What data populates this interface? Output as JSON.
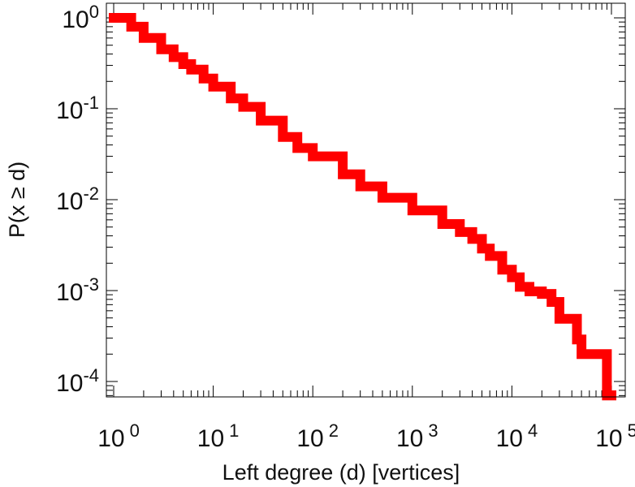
{
  "chart_data": {
    "type": "line",
    "title": "",
    "xlabel": "Left degree (d) [vertices]",
    "ylabel": "P(x ≥ d)",
    "x_scale": "log",
    "y_scale": "log",
    "xlim": [
      1,
      100000
    ],
    "ylim": [
      0.0001,
      1
    ],
    "grid": false,
    "x_ticks": [
      {
        "value": 1,
        "base": "10",
        "exp": "0"
      },
      {
        "value": 10,
        "base": "10",
        "exp": "1"
      },
      {
        "value": 100,
        "base": "10",
        "exp": "2"
      },
      {
        "value": 1000,
        "base": "10",
        "exp": "3"
      },
      {
        "value": 10000,
        "base": "10",
        "exp": "4"
      },
      {
        "value": 100000,
        "base": "10",
        "exp": "5"
      }
    ],
    "y_ticks": [
      {
        "value": 1,
        "base": "10",
        "exp": "0"
      },
      {
        "value": 0.1,
        "base": "10",
        "exp": "-1"
      },
      {
        "value": 0.01,
        "base": "10",
        "exp": "-2"
      },
      {
        "value": 0.001,
        "base": "10",
        "exp": "-3"
      },
      {
        "value": 0.0001,
        "base": "10",
        "exp": "-4"
      }
    ],
    "series": [
      {
        "color": "#ff0000",
        "style": "step",
        "x": [
          1,
          1.5,
          2,
          3,
          4,
          5,
          6,
          8,
          10,
          15,
          20,
          30,
          50,
          70,
          100,
          200,
          300,
          500,
          1000,
          2000,
          3000,
          4000,
          5000,
          6000,
          8000,
          10000,
          12000,
          15000,
          20000,
          25000,
          30000,
          40000,
          45000,
          50000,
          60000,
          70000,
          80000,
          90000,
          100000
        ],
        "y": [
          1,
          0.8,
          0.6,
          0.45,
          0.37,
          0.31,
          0.27,
          0.215,
          0.175,
          0.13,
          0.105,
          0.074,
          0.049,
          0.037,
          0.03,
          0.019,
          0.014,
          0.0105,
          0.0076,
          0.0054,
          0.0044,
          0.0037,
          0.0029,
          0.0024,
          0.0017,
          0.0014,
          0.0011,
          0.00098,
          0.00092,
          0.00075,
          0.00049,
          0.00049,
          0.00029,
          0.0002,
          0.0002,
          0.0002,
          0.0002,
          7e-05,
          7e-05
        ]
      }
    ]
  }
}
